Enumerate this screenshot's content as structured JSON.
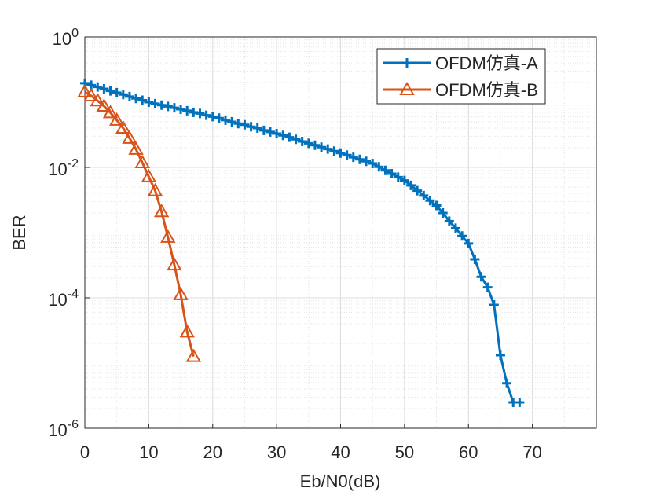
{
  "chart_data": {
    "type": "line",
    "x_label": "Eb/N0(dB)",
    "y_label": "BER",
    "xlim": [
      0,
      80
    ],
    "xticks": [
      0,
      10,
      20,
      30,
      40,
      50,
      60,
      70
    ],
    "ylim": [
      1e-06,
      1
    ],
    "log_y": true,
    "yticks": [
      {
        "value": 1,
        "label": "10^0"
      },
      {
        "value": 0.01,
        "label": "10^-2"
      },
      {
        "value": 0.0001,
        "label": "10^-4"
      },
      {
        "value": 1e-06,
        "label": "10^-6"
      }
    ],
    "grid": true,
    "minor_grid": true,
    "legend": "upper right",
    "series": [
      {
        "name": "OFDM仿真-A",
        "color": "#0072bd",
        "marker": "plus",
        "x": [
          0,
          1,
          2,
          3,
          4,
          5,
          6,
          7,
          8,
          9,
          10,
          11,
          12,
          13,
          14,
          15,
          16,
          17,
          18,
          19,
          20,
          21,
          22,
          23,
          24,
          25,
          26,
          27,
          28,
          29,
          30,
          31,
          32,
          33,
          34,
          35,
          36,
          37,
          38,
          39,
          40,
          41,
          42,
          43,
          44,
          45,
          46,
          47,
          48,
          49,
          50,
          51,
          52,
          53,
          54,
          55,
          56,
          57,
          58,
          59,
          60,
          61,
          62,
          63,
          64,
          65,
          66,
          67,
          68
        ],
        "values": [
          0.195,
          0.182,
          0.171,
          0.16,
          0.149,
          0.14,
          0.131,
          0.122,
          0.114,
          0.107,
          0.1,
          0.095,
          0.09,
          0.086,
          0.082,
          0.078,
          0.074,
          0.07,
          0.067,
          0.063,
          0.06,
          0.057,
          0.053,
          0.05,
          0.047,
          0.045,
          0.042,
          0.04,
          0.037,
          0.035,
          0.033,
          0.031,
          0.029,
          0.027,
          0.025,
          0.0234,
          0.0219,
          0.0204,
          0.0191,
          0.0178,
          0.0166,
          0.0155,
          0.0143,
          0.0133,
          0.0124,
          0.0115,
          0.0102,
          0.009,
          0.008,
          0.0071,
          0.0063,
          0.0053,
          0.0044,
          0.0037,
          0.0031,
          0.0026,
          0.002,
          0.0015,
          0.00117,
          0.00089,
          0.00068,
          0.00039,
          0.00021,
          0.000145,
          7.8e-05,
          1.32e-05,
          4.9e-06,
          2.5e-06,
          2.5e-06
        ]
      },
      {
        "name": "OFDM仿真-B",
        "color": "#d95319",
        "marker": "triangle",
        "x": [
          0,
          1,
          2,
          3,
          4,
          5,
          6,
          7,
          8,
          9,
          10,
          11,
          12,
          13,
          14,
          15,
          16,
          17
        ],
        "values": [
          0.144,
          0.125,
          0.105,
          0.087,
          0.069,
          0.053,
          0.04,
          0.028,
          0.019,
          0.0118,
          0.0072,
          0.0044,
          0.0021,
          0.00085,
          0.00032,
          0.000112,
          3e-05,
          1.26e-05
        ]
      }
    ]
  }
}
